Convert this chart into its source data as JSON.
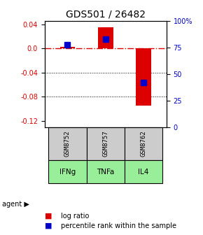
{
  "title": "GDS501 / 26482",
  "samples": [
    "GSM8752",
    "GSM8757",
    "GSM8762"
  ],
  "agents": [
    "IFNg",
    "TNFa",
    "IL4"
  ],
  "log_ratios": [
    0.002,
    0.035,
    -0.095
  ],
  "percentile_ranks": [
    0.78,
    0.83,
    0.42
  ],
  "ylim": [
    -0.13,
    0.045
  ],
  "y_left_ticks": [
    0.04,
    0.0,
    -0.04,
    -0.08,
    -0.12
  ],
  "y_right_ticks": [
    100,
    75,
    50,
    25,
    0
  ],
  "zero_line_y": 0.0,
  "bar_color": "#dd0000",
  "percentile_color": "#0000cc",
  "grid_color": "#000000",
  "zero_line_color": "#dd0000",
  "agent_bg_color": "#99ee99",
  "sample_bg_color": "#cccccc",
  "legend_log_ratio_color": "#dd0000",
  "legend_percentile_color": "#0000cc",
  "bar_width": 0.4,
  "percentile_marker_size": 6
}
